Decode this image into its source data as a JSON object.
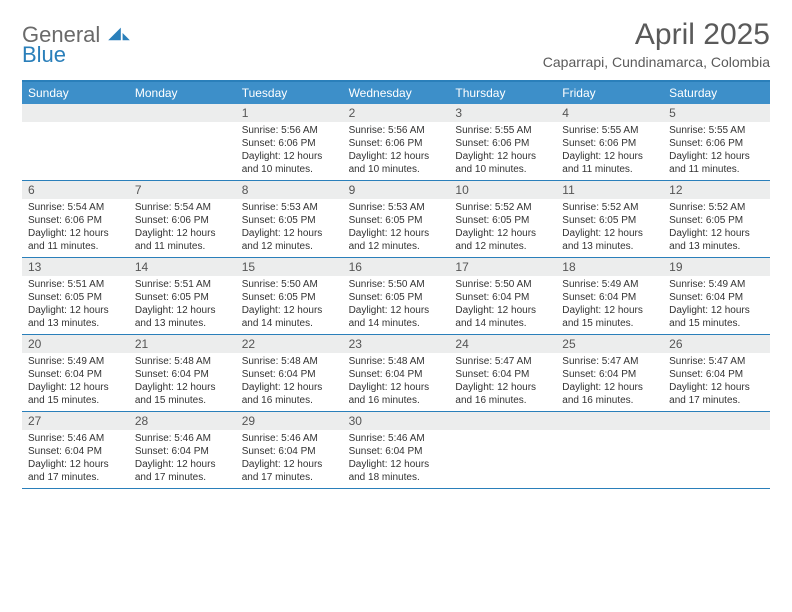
{
  "brand": {
    "word1": "General",
    "word2": "Blue"
  },
  "title": "April 2025",
  "subtitle": "Caparrapi, Cundinamarca, Colombia",
  "colors": {
    "header_bg": "#3d8fc9",
    "border": "#2a7fba",
    "daynum_bg": "#eceded",
    "text": "#333333",
    "title_color": "#5a5a5a"
  },
  "fonts": {
    "title_size_pt": 22,
    "subtitle_size_pt": 11,
    "header_size_pt": 9,
    "body_size_pt": 7.5
  },
  "day_headers": [
    "Sunday",
    "Monday",
    "Tuesday",
    "Wednesday",
    "Thursday",
    "Friday",
    "Saturday"
  ],
  "weeks": [
    [
      {
        "n": "",
        "sr": "",
        "ss": "",
        "dl": ""
      },
      {
        "n": "",
        "sr": "",
        "ss": "",
        "dl": ""
      },
      {
        "n": "1",
        "sr": "Sunrise: 5:56 AM",
        "ss": "Sunset: 6:06 PM",
        "dl": "Daylight: 12 hours and 10 minutes."
      },
      {
        "n": "2",
        "sr": "Sunrise: 5:56 AM",
        "ss": "Sunset: 6:06 PM",
        "dl": "Daylight: 12 hours and 10 minutes."
      },
      {
        "n": "3",
        "sr": "Sunrise: 5:55 AM",
        "ss": "Sunset: 6:06 PM",
        "dl": "Daylight: 12 hours and 10 minutes."
      },
      {
        "n": "4",
        "sr": "Sunrise: 5:55 AM",
        "ss": "Sunset: 6:06 PM",
        "dl": "Daylight: 12 hours and 11 minutes."
      },
      {
        "n": "5",
        "sr": "Sunrise: 5:55 AM",
        "ss": "Sunset: 6:06 PM",
        "dl": "Daylight: 12 hours and 11 minutes."
      }
    ],
    [
      {
        "n": "6",
        "sr": "Sunrise: 5:54 AM",
        "ss": "Sunset: 6:06 PM",
        "dl": "Daylight: 12 hours and 11 minutes."
      },
      {
        "n": "7",
        "sr": "Sunrise: 5:54 AM",
        "ss": "Sunset: 6:06 PM",
        "dl": "Daylight: 12 hours and 11 minutes."
      },
      {
        "n": "8",
        "sr": "Sunrise: 5:53 AM",
        "ss": "Sunset: 6:05 PM",
        "dl": "Daylight: 12 hours and 12 minutes."
      },
      {
        "n": "9",
        "sr": "Sunrise: 5:53 AM",
        "ss": "Sunset: 6:05 PM",
        "dl": "Daylight: 12 hours and 12 minutes."
      },
      {
        "n": "10",
        "sr": "Sunrise: 5:52 AM",
        "ss": "Sunset: 6:05 PM",
        "dl": "Daylight: 12 hours and 12 minutes."
      },
      {
        "n": "11",
        "sr": "Sunrise: 5:52 AM",
        "ss": "Sunset: 6:05 PM",
        "dl": "Daylight: 12 hours and 13 minutes."
      },
      {
        "n": "12",
        "sr": "Sunrise: 5:52 AM",
        "ss": "Sunset: 6:05 PM",
        "dl": "Daylight: 12 hours and 13 minutes."
      }
    ],
    [
      {
        "n": "13",
        "sr": "Sunrise: 5:51 AM",
        "ss": "Sunset: 6:05 PM",
        "dl": "Daylight: 12 hours and 13 minutes."
      },
      {
        "n": "14",
        "sr": "Sunrise: 5:51 AM",
        "ss": "Sunset: 6:05 PM",
        "dl": "Daylight: 12 hours and 13 minutes."
      },
      {
        "n": "15",
        "sr": "Sunrise: 5:50 AM",
        "ss": "Sunset: 6:05 PM",
        "dl": "Daylight: 12 hours and 14 minutes."
      },
      {
        "n": "16",
        "sr": "Sunrise: 5:50 AM",
        "ss": "Sunset: 6:05 PM",
        "dl": "Daylight: 12 hours and 14 minutes."
      },
      {
        "n": "17",
        "sr": "Sunrise: 5:50 AM",
        "ss": "Sunset: 6:04 PM",
        "dl": "Daylight: 12 hours and 14 minutes."
      },
      {
        "n": "18",
        "sr": "Sunrise: 5:49 AM",
        "ss": "Sunset: 6:04 PM",
        "dl": "Daylight: 12 hours and 15 minutes."
      },
      {
        "n": "19",
        "sr": "Sunrise: 5:49 AM",
        "ss": "Sunset: 6:04 PM",
        "dl": "Daylight: 12 hours and 15 minutes."
      }
    ],
    [
      {
        "n": "20",
        "sr": "Sunrise: 5:49 AM",
        "ss": "Sunset: 6:04 PM",
        "dl": "Daylight: 12 hours and 15 minutes."
      },
      {
        "n": "21",
        "sr": "Sunrise: 5:48 AM",
        "ss": "Sunset: 6:04 PM",
        "dl": "Daylight: 12 hours and 15 minutes."
      },
      {
        "n": "22",
        "sr": "Sunrise: 5:48 AM",
        "ss": "Sunset: 6:04 PM",
        "dl": "Daylight: 12 hours and 16 minutes."
      },
      {
        "n": "23",
        "sr": "Sunrise: 5:48 AM",
        "ss": "Sunset: 6:04 PM",
        "dl": "Daylight: 12 hours and 16 minutes."
      },
      {
        "n": "24",
        "sr": "Sunrise: 5:47 AM",
        "ss": "Sunset: 6:04 PM",
        "dl": "Daylight: 12 hours and 16 minutes."
      },
      {
        "n": "25",
        "sr": "Sunrise: 5:47 AM",
        "ss": "Sunset: 6:04 PM",
        "dl": "Daylight: 12 hours and 16 minutes."
      },
      {
        "n": "26",
        "sr": "Sunrise: 5:47 AM",
        "ss": "Sunset: 6:04 PM",
        "dl": "Daylight: 12 hours and 17 minutes."
      }
    ],
    [
      {
        "n": "27",
        "sr": "Sunrise: 5:46 AM",
        "ss": "Sunset: 6:04 PM",
        "dl": "Daylight: 12 hours and 17 minutes."
      },
      {
        "n": "28",
        "sr": "Sunrise: 5:46 AM",
        "ss": "Sunset: 6:04 PM",
        "dl": "Daylight: 12 hours and 17 minutes."
      },
      {
        "n": "29",
        "sr": "Sunrise: 5:46 AM",
        "ss": "Sunset: 6:04 PM",
        "dl": "Daylight: 12 hours and 17 minutes."
      },
      {
        "n": "30",
        "sr": "Sunrise: 5:46 AM",
        "ss": "Sunset: 6:04 PM",
        "dl": "Daylight: 12 hours and 18 minutes."
      },
      {
        "n": "",
        "sr": "",
        "ss": "",
        "dl": ""
      },
      {
        "n": "",
        "sr": "",
        "ss": "",
        "dl": ""
      },
      {
        "n": "",
        "sr": "",
        "ss": "",
        "dl": ""
      }
    ]
  ]
}
